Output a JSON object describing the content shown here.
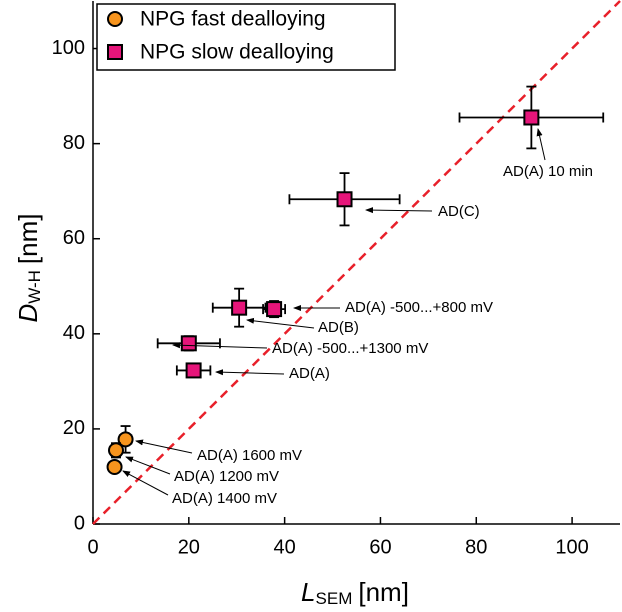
{
  "chart_data": {
    "type": "scatter",
    "xlabel": {
      "text": "L",
      "sub": "SEM",
      "unit": "[nm]"
    },
    "ylabel": {
      "text": "D",
      "sub": "W-H",
      "unit": "[nm]"
    },
    "xlim": [
      0,
      110
    ],
    "ylim": [
      0,
      110
    ],
    "xticks": [
      0,
      20,
      40,
      60,
      80,
      100
    ],
    "yticks": [
      0,
      20,
      40,
      60,
      80,
      100
    ],
    "diagonal": {
      "color": "#e8202a",
      "style": "dashed"
    },
    "legend": "top-left",
    "series": [
      {
        "name": "NPG fast dealloying",
        "color": "#f7941d",
        "marker": "circle",
        "x": [
          6.8,
          4.8,
          4.5
        ],
        "values": [
          17.8,
          15.5,
          12
        ],
        "xerr": [
          1.2,
          0.8,
          0.5
        ],
        "yerr": [
          2.8,
          1.5,
          1
        ]
      },
      {
        "name": "NPG slow dealloying",
        "color": "#e6157a",
        "marker": "square",
        "x": [
          91.5,
          52.5,
          30.5,
          37.8,
          20,
          21
        ],
        "values": [
          85.5,
          68.3,
          45.5,
          45.2,
          38,
          32.3
        ],
        "xerr": [
          15,
          11.5,
          5.5,
          2.3,
          6.5,
          3.5
        ],
        "yerr": [
          6.5,
          5.5,
          4,
          1.7,
          1.5,
          1
        ]
      }
    ],
    "annotations": [
      "AD(A) 10 min",
      "AD(C)",
      "AD(A) -500...+800 mV",
      "AD(B)",
      "AD(A) -500...+1300 mV",
      "AD(A)",
      "AD(A) 1600 mV",
      "AD(A) 1200 mV",
      "AD(A) 1400 mV"
    ]
  }
}
